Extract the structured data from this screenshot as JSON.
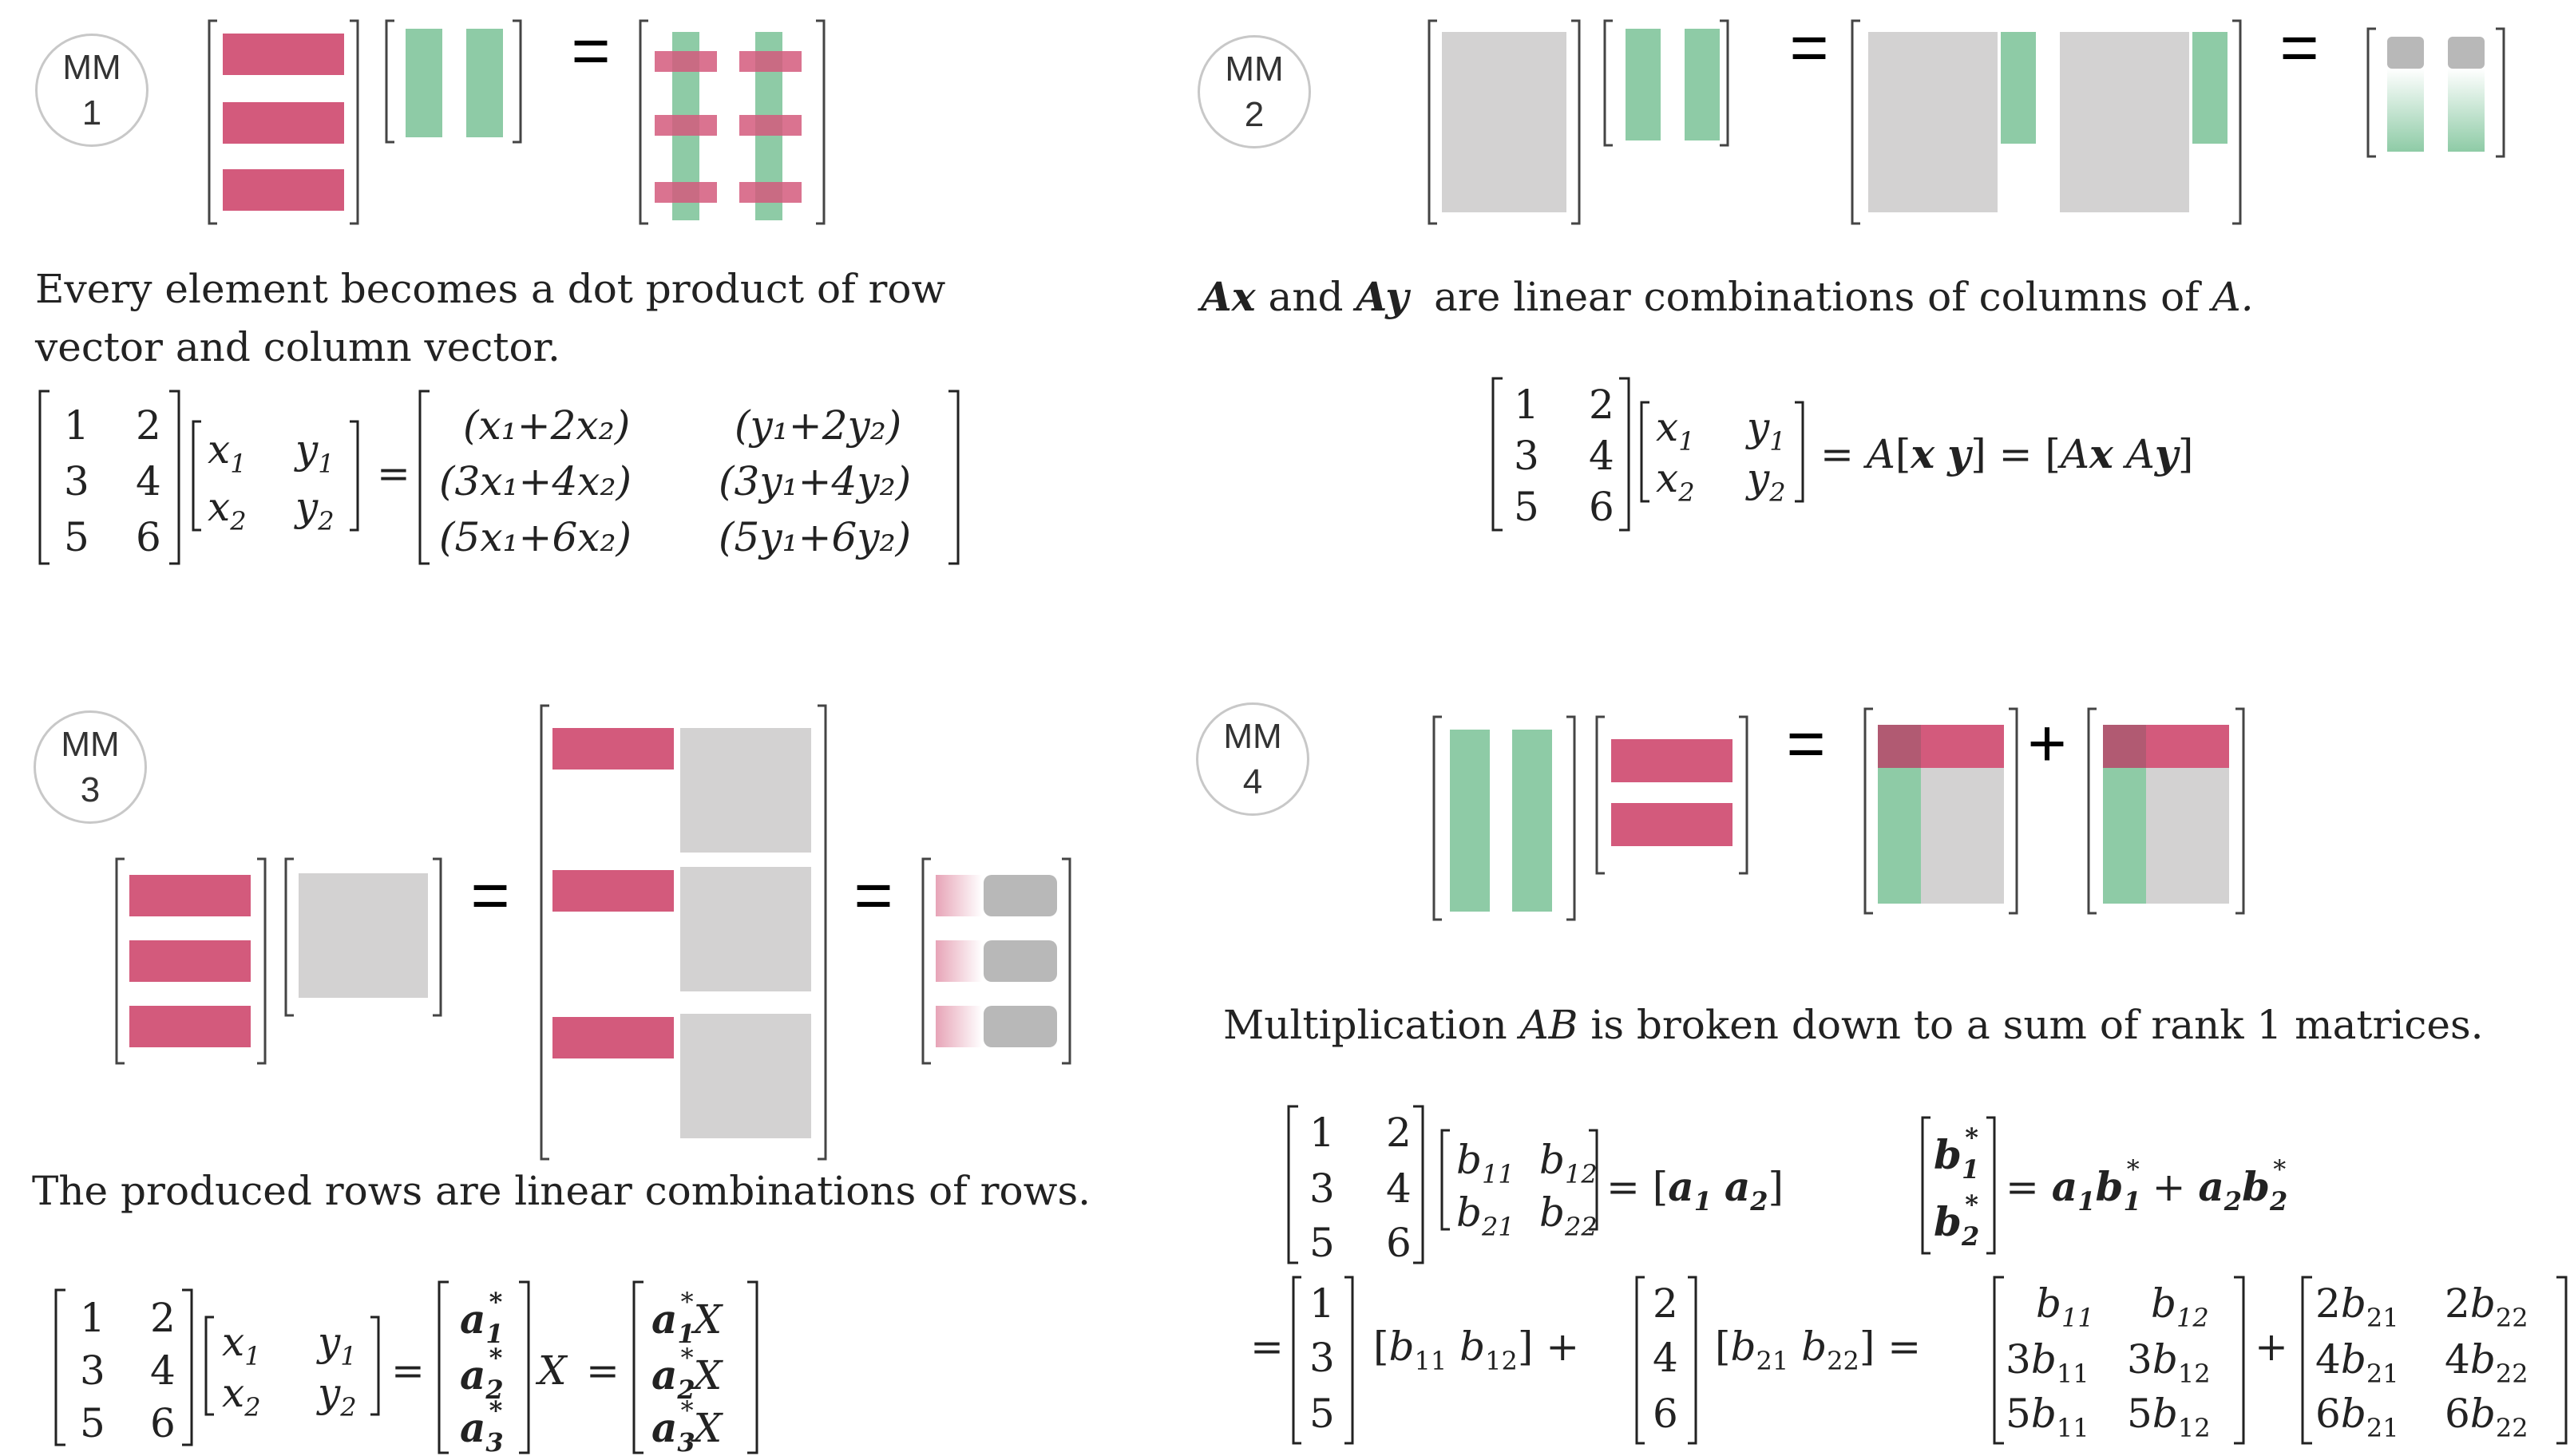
{
  "panels": {
    "mm1": {
      "badge_top": "MM",
      "badge_num": "1",
      "equals": "=",
      "caption": "Every element becomes a dot product of row vector and column vector.",
      "eq": {
        "a": [
          "1",
          "2",
          "3",
          "4",
          "5",
          "6"
        ],
        "r1c1": "(x₁+2x₂)",
        "r1c2": "(y₁+2y₂)",
        "r2c1": "(3x₁+4x₂)",
        "r2c2": "(3y₁+4y₂)",
        "r3c1": "(5x₁+6x₂)",
        "r3c2": "(5y₁+6y₂)"
      }
    },
    "mm2": {
      "badge_top": "MM",
      "badge_num": "2",
      "equals": "=",
      "caption_ax": "Ax",
      "caption_and": "and",
      "caption_ay": "Ay",
      "caption_rest": "are linear combinations of columns of",
      "caption_a": "A."
    },
    "mm3": {
      "badge_top": "MM",
      "badge_num": "3",
      "equals": "=",
      "caption": "The produced rows are linear combinations of rows."
    },
    "mm4": {
      "badge_top": "MM",
      "badge_num": "4",
      "equals": "=",
      "plus": "+",
      "caption_pre": "Multiplication",
      "caption_ab": "AB",
      "caption_post": "is broken down to a sum of rank 1 matrices."
    }
  },
  "colors": {
    "pink": "#d35a7c",
    "green": "#8ecba6",
    "gray": "#d3d2d2",
    "dark_gray": "#b8b8b8"
  }
}
